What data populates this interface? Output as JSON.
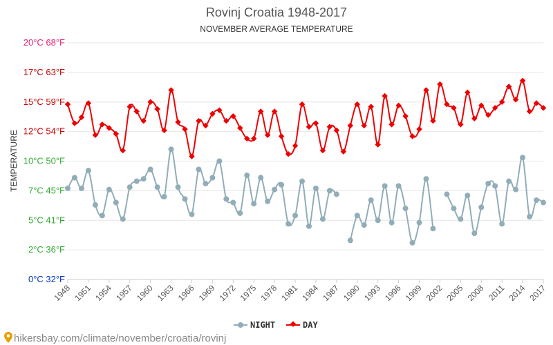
{
  "header": {
    "title": "Rovinj Croatia 1948-2017",
    "subtitle": "NOVEMBER AVERAGE TEMPERATURE"
  },
  "footer": {
    "url": "hikersbay.com/climate/november/croatia/rovinj"
  },
  "legend": {
    "night_label": "NIGHT",
    "day_label": "DAY"
  },
  "chart_data": {
    "type": "line",
    "ylabel": "TEMPERATURE",
    "ylim": [
      0,
      20
    ],
    "xlim": [
      1948,
      2017
    ],
    "y_ticks": [
      {
        "value": 0,
        "label": "0°C 32°F",
        "color": "#0033cc"
      },
      {
        "value": 2.5,
        "label": "2°C 36°F",
        "color": "#33aa33"
      },
      {
        "value": 5,
        "label": "5°C 41°F",
        "color": "#33aa33"
      },
      {
        "value": 7.5,
        "label": "7°C 45°F",
        "color": "#33aa33"
      },
      {
        "value": 10,
        "label": "10°C 50°F",
        "color": "#33aa33"
      },
      {
        "value": 12.5,
        "label": "12°C 54°F",
        "color": "#cc0000"
      },
      {
        "value": 15,
        "label": "15°C 59°F",
        "color": "#cc0000"
      },
      {
        "value": 17.5,
        "label": "17°C 63°F",
        "color": "#cc0000"
      },
      {
        "value": 20,
        "label": "20°C 68°F",
        "color": "#ee2277"
      }
    ],
    "x_ticks": [
      1948,
      1951,
      1954,
      1957,
      1960,
      1963,
      1966,
      1969,
      1972,
      1975,
      1978,
      1981,
      1984,
      1987,
      1990,
      1993,
      1996,
      1999,
      2002,
      2005,
      2008,
      2011,
      2014,
      2017
    ],
    "grid": true,
    "legend_position": "bottom",
    "series": [
      {
        "name": "NIGHT",
        "color": "#91adb8",
        "x": [
          1948,
          1949,
          1950,
          1951,
          1952,
          1953,
          1954,
          1955,
          1956,
          1957,
          1958,
          1959,
          1960,
          1961,
          1962,
          1963,
          1964,
          1965,
          1966,
          1967,
          1968,
          1969,
          1970,
          1971,
          1972,
          1973,
          1974,
          1975,
          1976,
          1977,
          1978,
          1979,
          1980,
          1981,
          1982,
          1983,
          1984,
          1985,
          1986,
          1987,
          1988,
          1989,
          1990,
          1991,
          1992,
          1993,
          1994,
          1995,
          1996,
          1997,
          1998,
          1999,
          2000,
          2001,
          2002,
          2003,
          2004,
          2005,
          2006,
          2007,
          2008,
          2009,
          2010,
          2011,
          2012,
          2013,
          2014,
          2015,
          2016,
          2017
        ],
        "values": [
          7.7,
          8.6,
          7.7,
          9.2,
          6.3,
          5.4,
          7.6,
          6.5,
          5.1,
          7.8,
          8.3,
          8.5,
          9.3,
          7.8,
          7.0,
          11.0,
          7.8,
          6.8,
          5.5,
          9.3,
          8.1,
          8.6,
          10.0,
          6.8,
          6.5,
          5.6,
          8.8,
          6.4,
          8.6,
          6.6,
          7.6,
          8.0,
          4.7,
          5.4,
          8.3,
          4.5,
          7.7,
          5.1,
          7.5,
          7.2,
          null,
          3.3,
          5.4,
          4.6,
          6.7,
          5.0,
          7.9,
          4.8,
          7.9,
          6.0,
          3.1,
          4.8,
          8.5,
          4.3,
          null,
          7.2,
          6.0,
          5.1,
          7.1,
          3.9,
          6.1,
          8.1,
          7.9,
          4.7,
          8.3,
          7.6,
          10.3,
          5.3,
          6.7,
          6.5
        ]
      },
      {
        "name": "DAY",
        "color": "#ee0000",
        "x": [
          1948,
          1949,
          1950,
          1951,
          1952,
          1953,
          1954,
          1955,
          1956,
          1957,
          1958,
          1959,
          1960,
          1961,
          1962,
          1963,
          1964,
          1965,
          1966,
          1967,
          1968,
          1969,
          1970,
          1971,
          1972,
          1973,
          1974,
          1975,
          1976,
          1977,
          1978,
          1979,
          1980,
          1981,
          1982,
          1983,
          1984,
          1985,
          1986,
          1987,
          1988,
          1989,
          1990,
          1991,
          1992,
          1993,
          1994,
          1995,
          1996,
          1997,
          1998,
          1999,
          2000,
          2001,
          2002,
          2003,
          2004,
          2005,
          2006,
          2007,
          2008,
          2009,
          2010,
          2011,
          2012,
          2013,
          2014,
          2015,
          2016,
          2017
        ],
        "values": [
          14.8,
          13.2,
          13.7,
          14.9,
          12.2,
          13.1,
          12.8,
          12.3,
          10.9,
          14.6,
          14.2,
          13.4,
          15.0,
          14.4,
          12.6,
          16.0,
          13.3,
          12.7,
          10.4,
          13.4,
          13.0,
          14.0,
          14.3,
          13.4,
          13.8,
          12.8,
          11.9,
          11.9,
          14.2,
          12.2,
          14.2,
          12.1,
          10.6,
          11.3,
          14.8,
          12.9,
          13.2,
          10.9,
          12.9,
          12.6,
          10.8,
          13.0,
          14.8,
          13.0,
          14.6,
          11.4,
          15.5,
          13.1,
          14.7,
          13.8,
          12.1,
          12.7,
          16.0,
          13.4,
          16.5,
          14.8,
          14.5,
          13.1,
          15.8,
          13.6,
          14.7,
          13.9,
          14.5,
          15.0,
          16.3,
          15.2,
          16.8,
          14.2,
          14.9,
          14.5
        ]
      }
    ]
  }
}
